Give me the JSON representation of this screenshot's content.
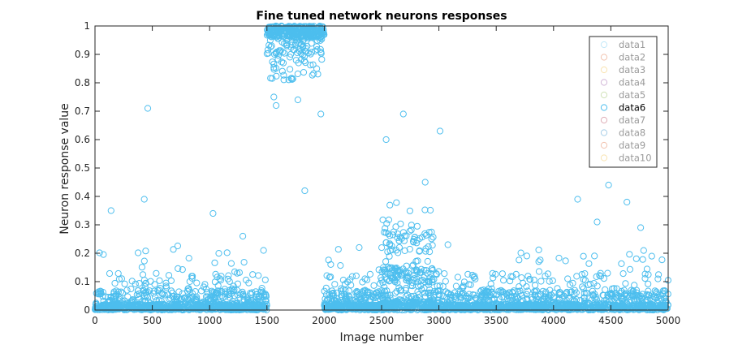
{
  "chart_data": {
    "type": "scatter",
    "title": "Fine tuned network neurons responses",
    "xlabel": "Image number",
    "ylabel": "Neuron response value",
    "xlim": [
      0,
      5000
    ],
    "ylim": [
      0,
      1
    ],
    "xticks": [
      0,
      500,
      1000,
      1500,
      2000,
      2500,
      3000,
      3500,
      4000,
      4500,
      5000
    ],
    "yticks": [
      0,
      0.1,
      0.2,
      0.3,
      0.4,
      0.5,
      0.6,
      0.7,
      0.8,
      0.9,
      1
    ],
    "ytick_labels": [
      "0",
      "0.1",
      "0.2",
      "0.3",
      "0.4",
      "0.5",
      "0.6",
      "0.7",
      "0.8",
      "0.9",
      "1"
    ],
    "grid": false,
    "legend_position": "top-right",
    "marker": "open-circle",
    "series": [
      {
        "name": "data1",
        "color": "#4dbeee",
        "active": false
      },
      {
        "name": "data2",
        "color": "#d95319",
        "active": false
      },
      {
        "name": "data3",
        "color": "#edb120",
        "active": false
      },
      {
        "name": "data4",
        "color": "#7e2f8e",
        "active": false
      },
      {
        "name": "data5",
        "color": "#77ac30",
        "active": false
      },
      {
        "name": "data6",
        "color": "#4dbeee",
        "active": true
      },
      {
        "name": "data7",
        "color": "#a2142f",
        "active": false
      },
      {
        "name": "data8",
        "color": "#0072bd",
        "active": false
      },
      {
        "name": "data9",
        "color": "#d95319",
        "active": false
      },
      {
        "name": "data10",
        "color": "#edb120",
        "active": false
      }
    ],
    "points_color": "#4dbeee",
    "segments": [
      {
        "x_range": [
          0,
          1500
        ],
        "profile": "low",
        "n": 900
      },
      {
        "x_range": [
          1500,
          2000
        ],
        "profile": "high",
        "n": 380
      },
      {
        "x_range": [
          2000,
          2500
        ],
        "profile": "low",
        "n": 350
      },
      {
        "x_range": [
          2500,
          2950
        ],
        "profile": "medium",
        "n": 420
      },
      {
        "x_range": [
          2950,
          5000
        ],
        "profile": "low",
        "n": 1200
      }
    ],
    "outliers": [
      {
        "x": 460,
        "y": 0.71
      },
      {
        "x": 430,
        "y": 0.39
      },
      {
        "x": 140,
        "y": 0.35
      },
      {
        "x": 1030,
        "y": 0.34
      },
      {
        "x": 1770,
        "y": 0.74
      },
      {
        "x": 1560,
        "y": 0.75
      },
      {
        "x": 1580,
        "y": 0.72
      },
      {
        "x": 1970,
        "y": 0.69
      },
      {
        "x": 1830,
        "y": 0.42
      },
      {
        "x": 2540,
        "y": 0.6
      },
      {
        "x": 2690,
        "y": 0.69
      },
      {
        "x": 3010,
        "y": 0.63
      },
      {
        "x": 2880,
        "y": 0.45
      },
      {
        "x": 4480,
        "y": 0.44
      },
      {
        "x": 4210,
        "y": 0.39
      },
      {
        "x": 4640,
        "y": 0.38
      },
      {
        "x": 4380,
        "y": 0.31
      },
      {
        "x": 4760,
        "y": 0.29
      },
      {
        "x": 1290,
        "y": 0.26
      },
      {
        "x": 1470,
        "y": 0.21
      }
    ]
  }
}
